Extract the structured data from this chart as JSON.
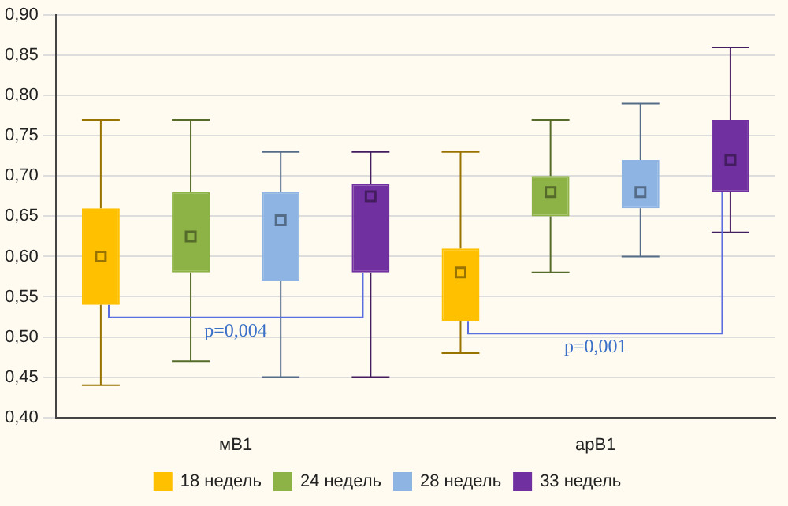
{
  "chart_data": {
    "type": "box",
    "categories": [
      "мВ1",
      "арВ1"
    ],
    "series": [
      {
        "name": "18 недель",
        "color": "#ffc000",
        "boxes": [
          {
            "low": 0.44,
            "q1": 0.54,
            "median": 0.6,
            "q3": 0.66,
            "high": 0.77
          },
          {
            "low": 0.48,
            "q1": 0.52,
            "median": 0.58,
            "q3": 0.61,
            "high": 0.73
          }
        ]
      },
      {
        "name": "24 недель",
        "color": "#8db346",
        "boxes": [
          {
            "low": 0.47,
            "q1": 0.58,
            "median": 0.625,
            "q3": 0.68,
            "high": 0.77
          },
          {
            "low": 0.58,
            "q1": 0.65,
            "median": 0.68,
            "q3": 0.7,
            "high": 0.77
          }
        ]
      },
      {
        "name": "28 недель",
        "color": "#8db4e2",
        "boxes": [
          {
            "low": 0.45,
            "q1": 0.57,
            "median": 0.645,
            "q3": 0.68,
            "high": 0.73
          },
          {
            "low": 0.6,
            "q1": 0.66,
            "median": 0.68,
            "q3": 0.72,
            "high": 0.79
          }
        ]
      },
      {
        "name": "33 недель",
        "color": "#7030a0",
        "boxes": [
          {
            "low": 0.45,
            "q1": 0.58,
            "median": 0.675,
            "q3": 0.69,
            "high": 0.73
          },
          {
            "low": 0.63,
            "q1": 0.68,
            "median": 0.72,
            "q3": 0.77,
            "high": 0.86
          }
        ]
      }
    ],
    "ylim": [
      0.4,
      0.9
    ],
    "yticks": [
      {
        "value": 0.4,
        "label": "0,40"
      },
      {
        "value": 0.45,
        "label": "0,45"
      },
      {
        "value": 0.5,
        "label": "0,50"
      },
      {
        "value": 0.55,
        "label": "0,55"
      },
      {
        "value": 0.6,
        "label": "0,60"
      },
      {
        "value": 0.65,
        "label": "0,65"
      },
      {
        "value": 0.7,
        "label": "0,70"
      },
      {
        "value": 0.75,
        "label": "0,75"
      },
      {
        "value": 0.8,
        "label": "0,80"
      },
      {
        "value": 0.85,
        "label": "0,85"
      },
      {
        "value": 0.9,
        "label": "0,90"
      }
    ],
    "grid": "y",
    "legend": "bottom",
    "marker": "square",
    "annotations": [
      "p=0,004",
      "p=0,001"
    ]
  }
}
